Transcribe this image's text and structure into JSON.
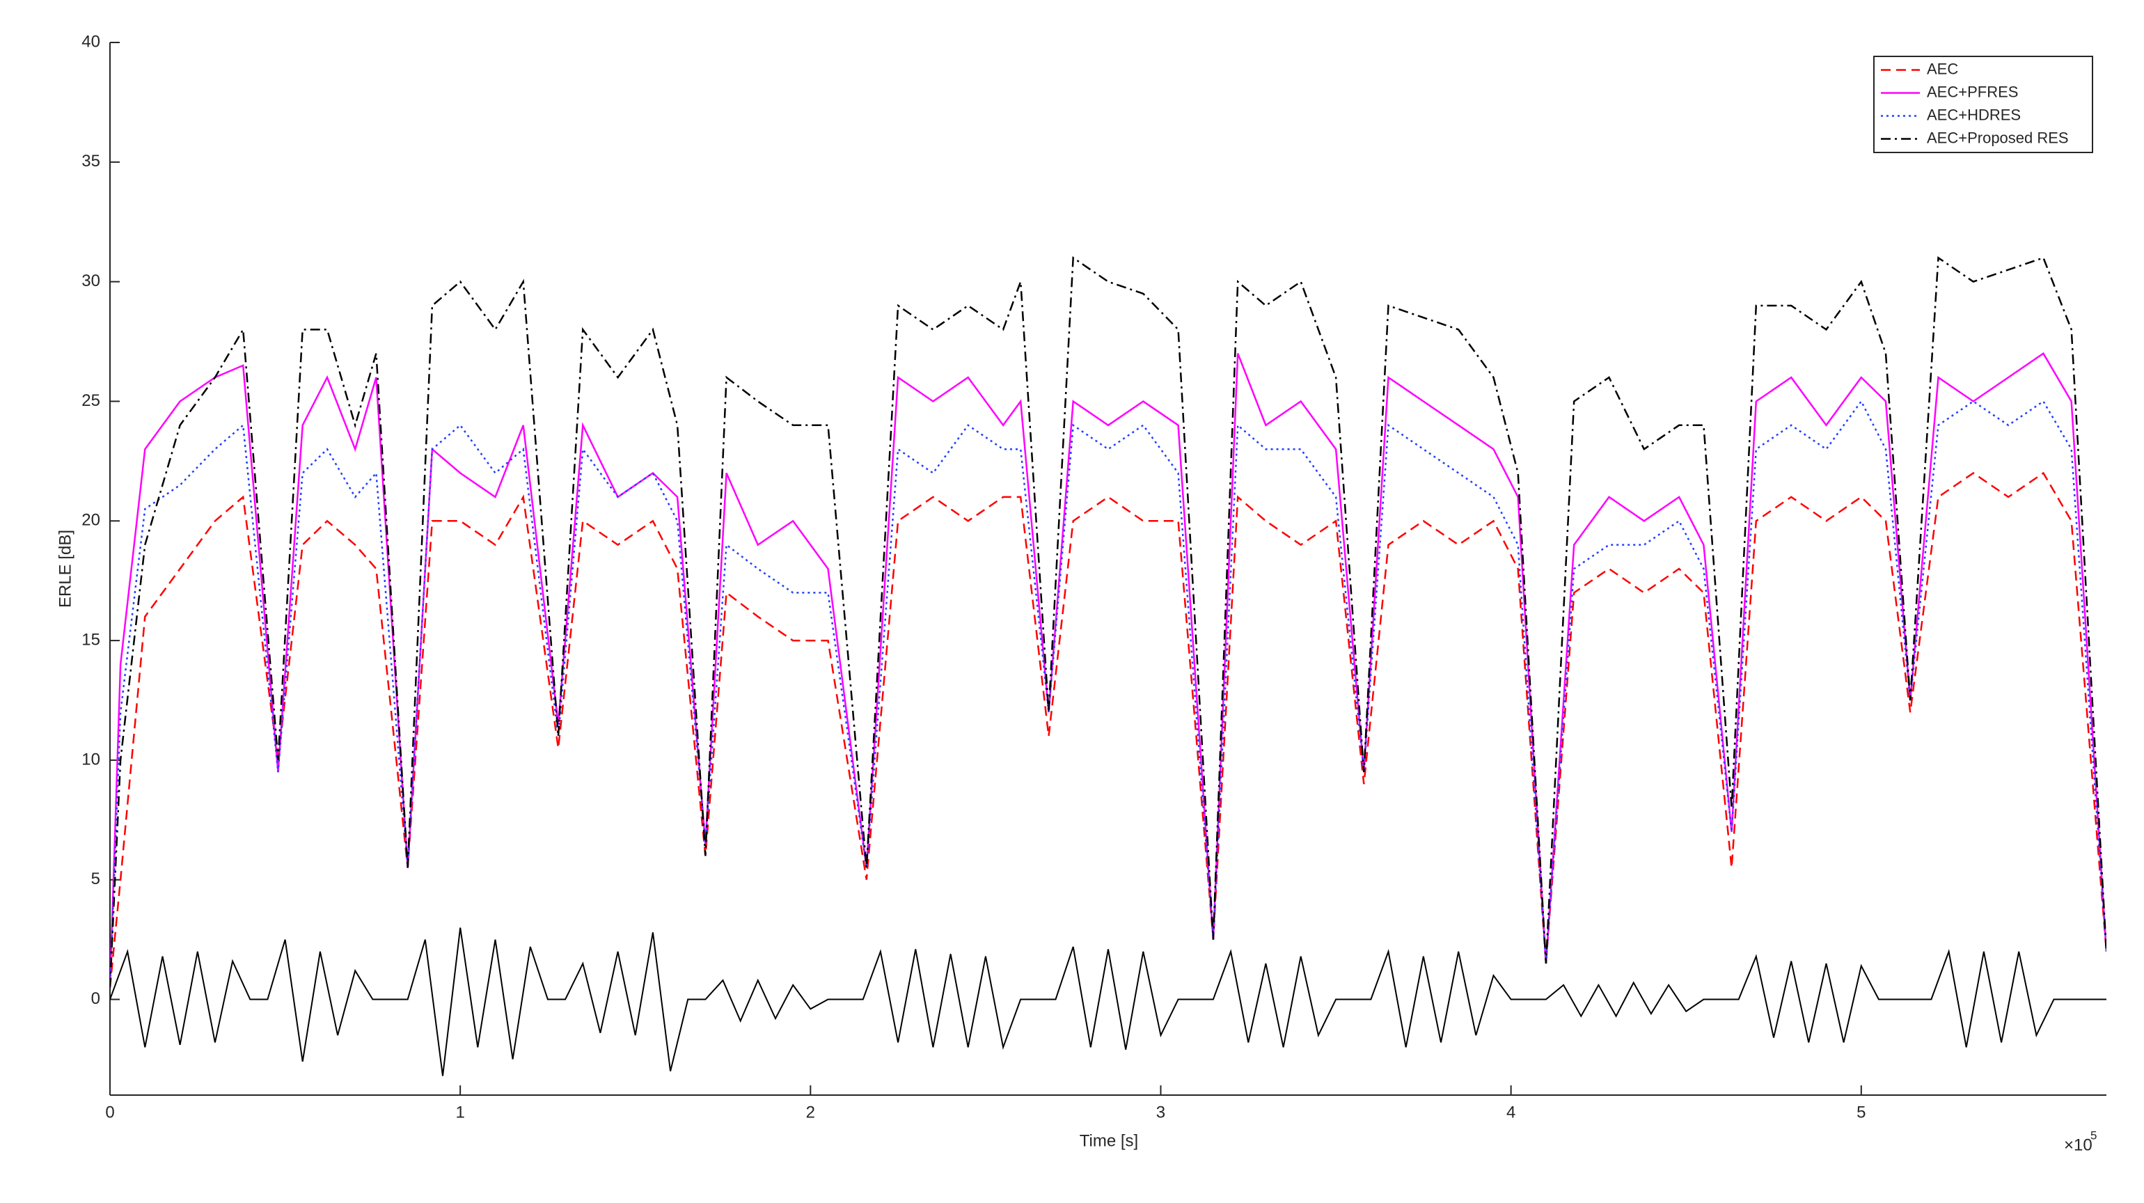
{
  "chart_data": {
    "type": "line",
    "xlabel": "Time [s]",
    "ylabel": "ERLE [dB]",
    "x_multiplier": {
      "base": "×10",
      "exponent": "5"
    },
    "xlim": [
      0,
      5.7
    ],
    "xticks": [
      0,
      1,
      2,
      3,
      4,
      5
    ],
    "ylim": [
      -4,
      40
    ],
    "yticks": [
      0,
      5,
      10,
      15,
      20,
      25,
      30,
      35,
      40
    ],
    "legend": "top-right",
    "x": [
      0,
      0.03,
      0.1,
      0.2,
      0.3,
      0.38,
      0.48,
      0.55,
      0.62,
      0.7,
      0.76,
      0.85,
      0.92,
      1.0,
      1.1,
      1.18,
      1.28,
      1.35,
      1.45,
      1.55,
      1.62,
      1.7,
      1.76,
      1.85,
      1.95,
      2.05,
      2.16,
      2.25,
      2.35,
      2.45,
      2.55,
      2.6,
      2.68,
      2.75,
      2.85,
      2.95,
      3.05,
      3.15,
      3.22,
      3.3,
      3.4,
      3.5,
      3.58,
      3.65,
      3.75,
      3.85,
      3.95,
      4.02,
      4.1,
      4.18,
      4.28,
      4.38,
      4.48,
      4.55,
      4.63,
      4.7,
      4.8,
      4.9,
      5.0,
      5.07,
      5.14,
      5.22,
      5.32,
      5.42,
      5.52,
      5.6,
      5.7
    ],
    "series": [
      {
        "name": "AEC",
        "color": "#ff0000",
        "dash": "dashed",
        "values": [
          0.5,
          5,
          16,
          18,
          20,
          21,
          10,
          19,
          20,
          19,
          18,
          5.5,
          20,
          20,
          19,
          21,
          10.5,
          20,
          19,
          20,
          18,
          6,
          17,
          16,
          15,
          15,
          5,
          20,
          21,
          20,
          21,
          21,
          11,
          20,
          21,
          20,
          20,
          2.5,
          21,
          20,
          19,
          20,
          9,
          19,
          20,
          19,
          20,
          18,
          1.5,
          17,
          18,
          17,
          18,
          17,
          5.5,
          20,
          21,
          20,
          21,
          20,
          12,
          21,
          22,
          21,
          22,
          20,
          2
        ]
      },
      {
        "name": "AEC+PFRES",
        "color": "#ff00ff",
        "dash": "solid",
        "values": [
          0.5,
          14,
          23,
          25,
          26,
          26.5,
          9.5,
          24,
          26,
          23,
          26,
          5.5,
          23,
          22,
          21,
          24,
          11.5,
          24,
          21,
          22,
          21,
          6.5,
          22,
          19,
          20,
          18,
          5.5,
          26,
          25,
          26,
          24,
          25,
          12,
          25,
          24,
          25,
          24,
          2.5,
          27,
          24,
          25,
          23,
          9.5,
          26,
          25,
          24,
          23,
          21,
          1.5,
          19,
          21,
          20,
          21,
          19,
          7,
          25,
          26,
          24,
          26,
          25,
          12.5,
          26,
          25,
          26,
          27,
          25,
          2
        ]
      },
      {
        "name": "AEC+HDRES",
        "color": "#2040ff",
        "dash": "dotted",
        "values": [
          0.5,
          12,
          20.5,
          21.5,
          23,
          24,
          9.5,
          22,
          23,
          21,
          22,
          5.5,
          23,
          24,
          22,
          23,
          11,
          23,
          21,
          22,
          20,
          6.5,
          19,
          18,
          17,
          17,
          5.5,
          23,
          22,
          24,
          23,
          23,
          12,
          24,
          23,
          24,
          22,
          2.5,
          24,
          23,
          23,
          21,
          9.5,
          24,
          23,
          22,
          21,
          19,
          1.5,
          18,
          19,
          19,
          20,
          18,
          7,
          23,
          24,
          23,
          25,
          23,
          12.5,
          24,
          25,
          24,
          25,
          23,
          2
        ]
      },
      {
        "name": "AEC+Proposed RES",
        "color": "#000000",
        "dash": "dashdot",
        "values": [
          0.5,
          10,
          19,
          24,
          26,
          28,
          10,
          28,
          28,
          24,
          27,
          5.5,
          29,
          30,
          28,
          30,
          11,
          28,
          26,
          28,
          24,
          6,
          26,
          25,
          24,
          24,
          5.5,
          29,
          28,
          29,
          28,
          30,
          12,
          31,
          30,
          29.5,
          28,
          2.5,
          30,
          29,
          30,
          26,
          9.5,
          29,
          28.5,
          28,
          26,
          22,
          1.5,
          25,
          26,
          23,
          24,
          24,
          8,
          29,
          29,
          28,
          30,
          27,
          12.5,
          31,
          30,
          30.5,
          31,
          28,
          2
        ]
      },
      {
        "color": "#000000",
        "dash": "solid",
        "x": [
          0,
          0.05,
          0.1,
          0.15,
          0.2,
          0.25,
          0.3,
          0.35,
          0.4,
          0.45,
          0.5,
          0.55,
          0.6,
          0.65,
          0.7,
          0.75,
          0.8,
          0.85,
          0.9,
          0.95,
          1.0,
          1.05,
          1.1,
          1.15,
          1.2,
          1.25,
          1.3,
          1.35,
          1.4,
          1.45,
          1.5,
          1.55,
          1.6,
          1.65,
          1.7,
          1.75,
          1.8,
          1.85,
          1.9,
          1.95,
          2.0,
          2.05,
          2.1,
          2.15,
          2.2,
          2.25,
          2.3,
          2.35,
          2.4,
          2.45,
          2.5,
          2.55,
          2.6,
          2.65,
          2.7,
          2.75,
          2.8,
          2.85,
          2.9,
          2.95,
          3.0,
          3.05,
          3.1,
          3.15,
          3.2,
          3.25,
          3.3,
          3.35,
          3.4,
          3.45,
          3.5,
          3.55,
          3.6,
          3.65,
          3.7,
          3.75,
          3.8,
          3.85,
          3.9,
          3.95,
          4.0,
          4.05,
          4.1,
          4.15,
          4.2,
          4.25,
          4.3,
          4.35,
          4.4,
          4.45,
          4.5,
          4.55,
          4.6,
          4.65,
          4.7,
          4.75,
          4.8,
          4.85,
          4.9,
          4.95,
          5.0,
          5.05,
          5.1,
          5.15,
          5.2,
          5.25,
          5.3,
          5.35,
          5.4,
          5.45,
          5.5,
          5.55,
          5.6,
          5.65,
          5.7
        ],
        "values": [
          0,
          2,
          -2,
          1.8,
          -1.9,
          2,
          -1.8,
          1.6,
          0,
          0,
          2.5,
          -2.6,
          2,
          -1.5,
          1.2,
          0,
          0,
          0,
          2.5,
          -3.2,
          3,
          -2,
          2.5,
          -2.5,
          2.2,
          0,
          0,
          1.5,
          -1.4,
          2,
          -1.5,
          2.8,
          -3,
          0,
          0,
          0.8,
          -0.9,
          0.8,
          -0.8,
          0.6,
          -0.4,
          0,
          0,
          0,
          2,
          -1.8,
          2.1,
          -2,
          1.9,
          -2,
          1.8,
          -2,
          0,
          0,
          0,
          2.2,
          -2,
          2.1,
          -2.1,
          2,
          -1.5,
          0,
          0,
          0,
          2,
          -1.8,
          1.5,
          -2,
          1.8,
          -1.5,
          0,
          0,
          0,
          2,
          -2,
          1.8,
          -1.8,
          2,
          -1.5,
          1,
          0,
          0,
          0,
          0.6,
          -0.7,
          0.6,
          -0.7,
          0.7,
          -0.6,
          0.6,
          -0.5,
          0,
          0,
          0,
          1.8,
          -1.6,
          1.6,
          -1.8,
          1.5,
          -1.8,
          1.4,
          0,
          0,
          0,
          0,
          2,
          -2,
          2,
          -1.8,
          2,
          -1.5,
          0,
          0,
          0,
          0
        ]
      }
    ]
  }
}
